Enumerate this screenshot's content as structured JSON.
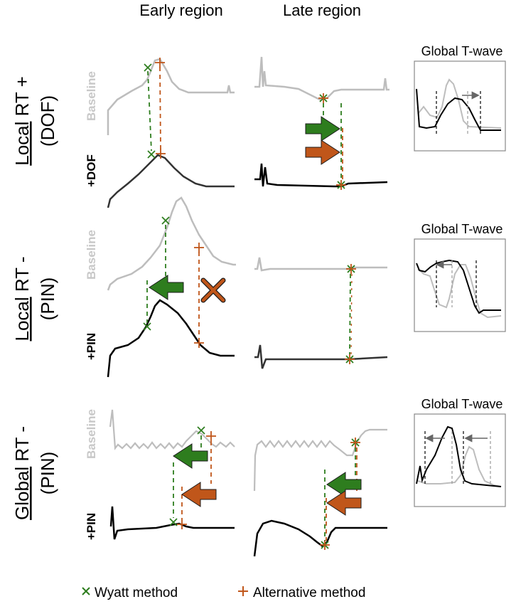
{
  "columns": {
    "early": "Early region",
    "late": "Late region"
  },
  "rows": [
    {
      "title_underlined": "Local",
      "title_rest": " RT +",
      "subtitle": "(DOF)",
      "baseline_label": "Baseline",
      "treatment_label": "+DOF"
    },
    {
      "title_underlined": "Local",
      "title_rest": " RT -",
      "subtitle": "(PIN)",
      "baseline_label": "Baseline",
      "treatment_label": "+PIN"
    },
    {
      "title_underlined": "Global",
      "title_rest": " RT -",
      "subtitle": "(PIN)",
      "baseline_label": "Baseline",
      "treatment_label": "+PIN"
    }
  ],
  "global_panel_title": "Global T-wave",
  "legend": {
    "wyatt": "Wyatt method",
    "alternative": "Alternative method"
  },
  "colors": {
    "wyatt": "#2e7d1e",
    "alternative": "#c0561a",
    "baseline": "#bdbdbd",
    "treatment": "#111111",
    "arrow_gray": "#666666"
  }
}
